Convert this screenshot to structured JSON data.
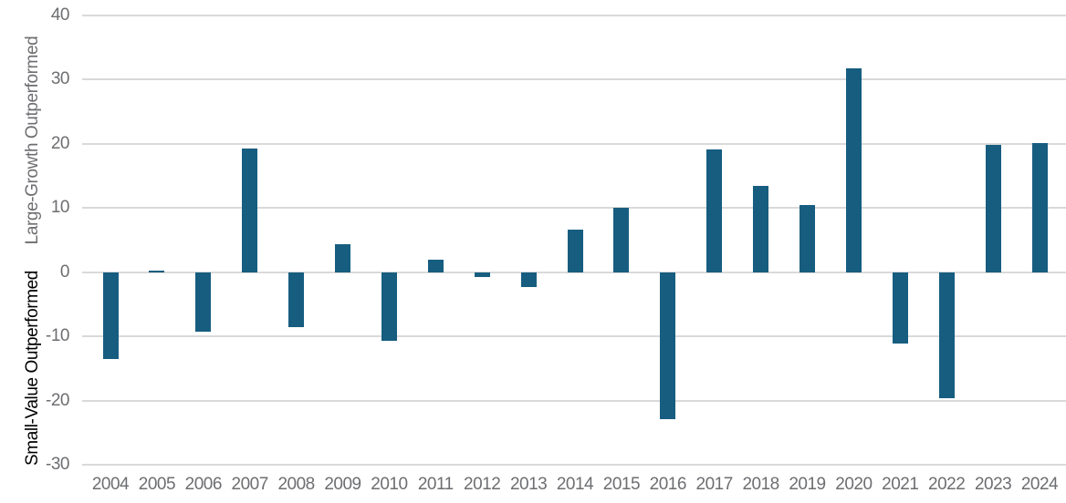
{
  "chart_data": {
    "type": "bar",
    "title": "",
    "categories": [
      "2004",
      "2005",
      "2006",
      "2007",
      "2008",
      "2009",
      "2010",
      "2011",
      "2012",
      "2013",
      "2014",
      "2015",
      "2016",
      "2017",
      "2018",
      "2019",
      "2020",
      "2021",
      "2022",
      "2023",
      "2024"
    ],
    "values": [
      -13.5,
      0.3,
      -9.3,
      19.3,
      -8.5,
      4.3,
      -10.7,
      1.9,
      -0.7,
      -2.3,
      6.6,
      10.1,
      -22.9,
      19.1,
      13.4,
      10.4,
      31.8,
      -11.1,
      -19.6,
      19.9,
      20.1
    ],
    "xlabel": "",
    "ylabel_positive": "Large-Growth Outperformed",
    "ylabel_negative": "Small-Value Outperformed",
    "ylim": [
      -30,
      40
    ],
    "yticks": [
      40,
      30,
      20,
      10,
      0,
      -10,
      -20,
      -30
    ],
    "grid": "horizontal",
    "legend_position": "none",
    "colors": {
      "bar": "#175d80",
      "gridline": "#d9d9d9",
      "tick_label": "#6d6e71",
      "ylabel_positive": "#6d6e71",
      "ylabel_negative": "#000000",
      "background": "#ffffff"
    }
  }
}
